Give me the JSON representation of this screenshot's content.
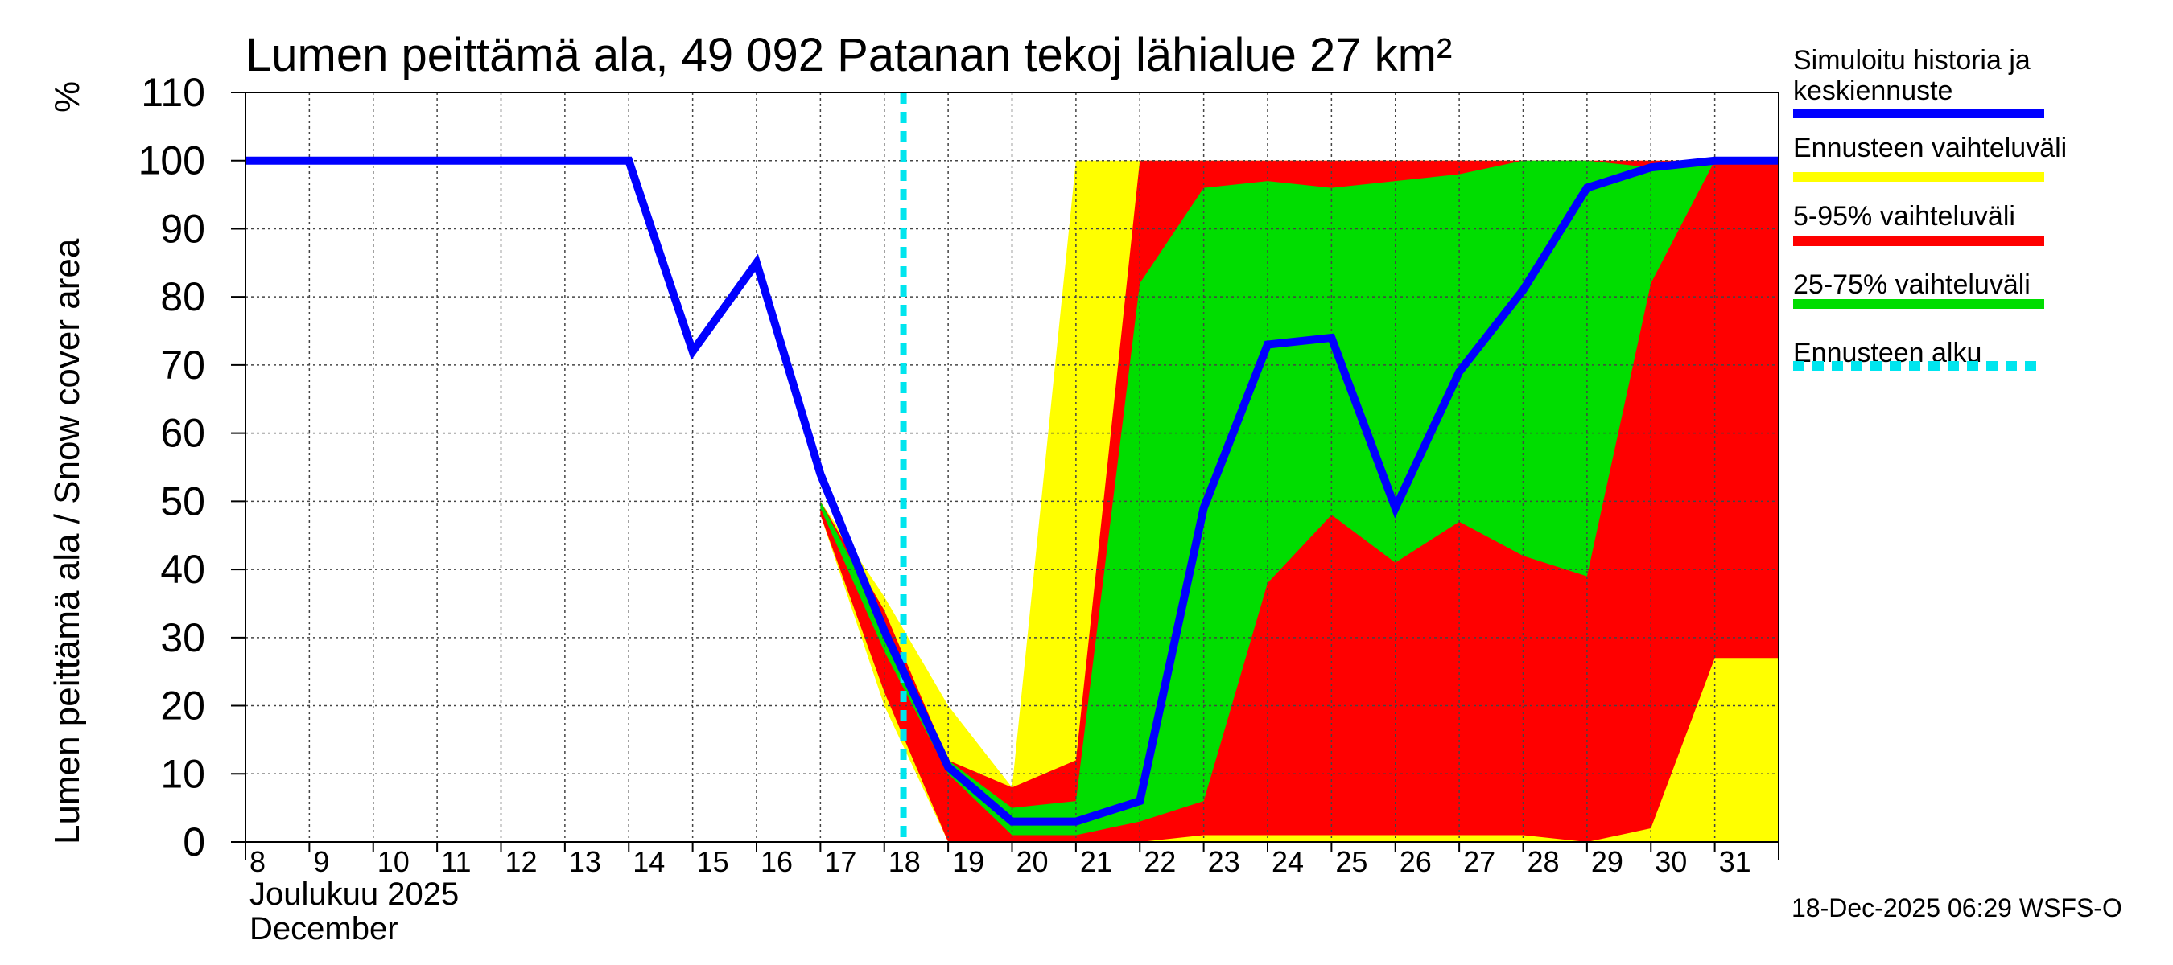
{
  "chart_data": {
    "type": "area",
    "title": "Lumen peittämä ala, 49 092 Patanan tekoj lähialue 27 km²",
    "ylabel": "Lumen peittämä ala / Snow cover area",
    "yunit": "%",
    "ylim": [
      0,
      110
    ],
    "yticks": [
      0,
      10,
      20,
      30,
      40,
      50,
      60,
      70,
      80,
      90,
      100,
      110
    ],
    "xlim": [
      8,
      32
    ],
    "xtick_labels": [
      "8",
      "9",
      "10",
      "11",
      "12",
      "13",
      "14",
      "15",
      "16",
      "17",
      "18",
      "19",
      "20",
      "21",
      "22",
      "23",
      "24",
      "25",
      "26",
      "27",
      "28",
      "29",
      "30",
      "31"
    ],
    "month_label_fi": "Joulukuu  2025",
    "month_label_en": "December",
    "grid": true,
    "forecast_start_day": 18.3,
    "series": [
      {
        "name": "Simuloitu historia ja keskiennuste",
        "kind": "line",
        "color": "#0000ff",
        "x": [
          8,
          14,
          15,
          16,
          17,
          18,
          19,
          20,
          21,
          22,
          23,
          24,
          25,
          26,
          27,
          28,
          29,
          30,
          31,
          32
        ],
        "y": [
          100,
          100,
          72,
          85,
          54,
          31,
          11,
          3,
          3,
          6,
          49,
          73,
          74,
          49,
          69,
          81,
          96,
          99,
          100,
          100
        ]
      },
      {
        "name": "Ennusteen vaihteluväli",
        "kind": "band",
        "color": "#ffff00",
        "x": [
          17,
          18,
          19,
          20,
          21,
          22,
          23,
          24,
          25,
          26,
          27,
          28,
          29,
          30,
          31,
          32
        ],
        "upper": [
          50,
          36,
          20,
          8,
          100,
          100,
          100,
          100,
          100,
          100,
          100,
          100,
          100,
          100,
          100,
          100
        ],
        "lower": [
          48,
          20,
          0,
          0,
          0,
          0,
          0,
          0,
          0,
          0,
          0,
          0,
          0,
          0,
          0,
          0
        ]
      },
      {
        "name": "5-95% vaihteluväli",
        "kind": "band",
        "color": "#ff0000",
        "x": [
          17,
          18,
          19,
          20,
          21,
          22,
          23,
          24,
          25,
          26,
          27,
          28,
          29,
          30,
          31,
          32
        ],
        "upper": [
          50,
          34,
          12,
          8,
          12,
          100,
          100,
          100,
          100,
          100,
          100,
          100,
          100,
          100,
          100,
          100
        ],
        "lower": [
          48,
          22,
          0,
          0,
          0,
          0,
          1,
          1,
          1,
          1,
          1,
          1,
          0,
          2,
          27,
          27
        ]
      },
      {
        "name": "25-75% vaihteluväli",
        "kind": "band",
        "color": "#00dd00",
        "x": [
          17,
          18,
          19,
          20,
          21,
          22,
          23,
          24,
          25,
          26,
          27,
          28,
          29,
          30,
          31,
          32
        ],
        "upper": [
          50,
          32,
          12,
          5,
          6,
          82,
          96,
          97,
          96,
          97,
          98,
          100,
          100,
          99,
          100,
          100
        ],
        "lower": [
          49,
          28,
          10,
          1,
          1,
          3,
          6,
          38,
          48,
          41,
          47,
          42,
          39,
          82,
          100,
          100
        ]
      },
      {
        "name": "Ennusteen alku",
        "kind": "vline",
        "color": "#00e5ee"
      }
    ]
  },
  "footer": "18-Dec-2025 06:29 WSFS-O"
}
